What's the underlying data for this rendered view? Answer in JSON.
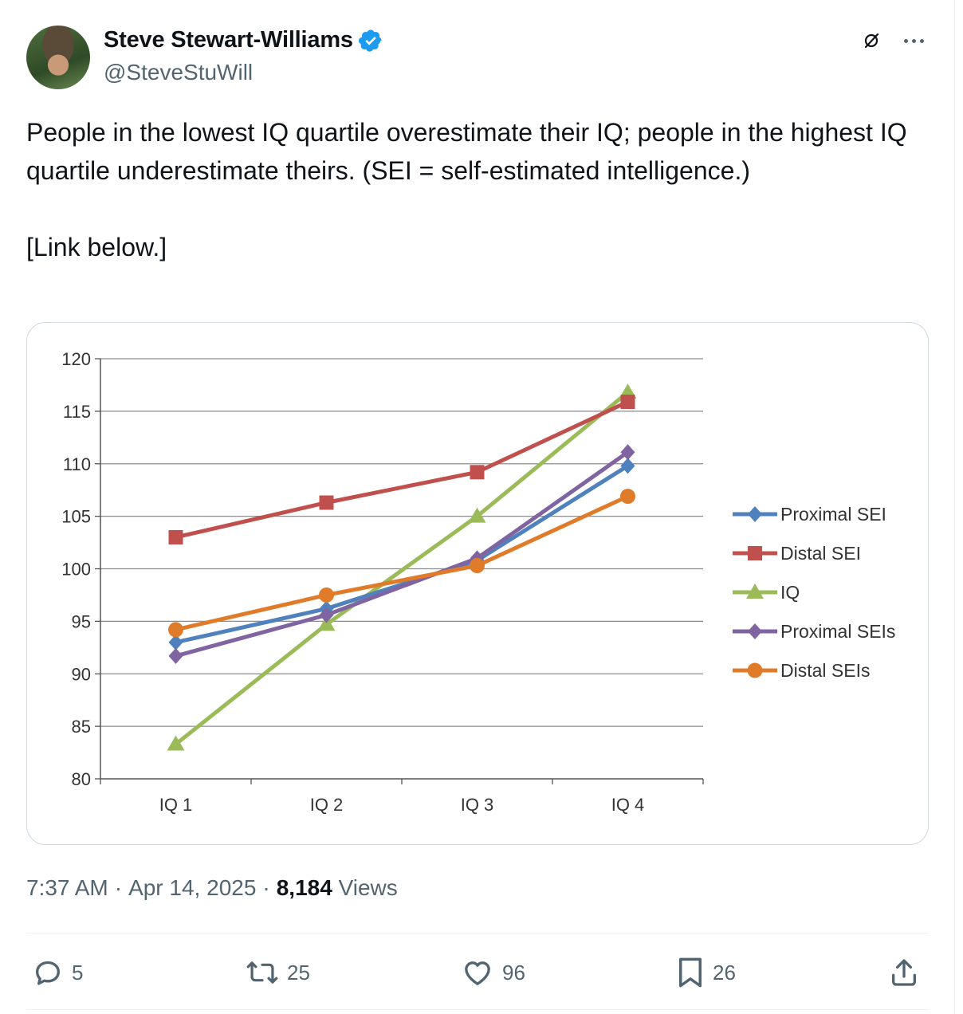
{
  "author": {
    "display_name": "Steve Stewart-Williams",
    "handle": "@SteveStuWill",
    "verified_icon": "verified-badge-icon"
  },
  "tweet": {
    "text_lines": [
      "People in the lowest IQ quartile overestimate their IQ; people in the highest IQ quartile underestimate theirs. (SEI = self-estimated intelligence.)",
      "[Link below.]"
    ]
  },
  "meta": {
    "time": "7:37 AM",
    "separator": "·",
    "date": "Apr 14, 2025",
    "views_count": "8,184",
    "views_label": "Views"
  },
  "actions": {
    "replies": "5",
    "reposts": "25",
    "likes": "96",
    "bookmarks": "26"
  },
  "colors": {
    "proximal_sei": "#4f81bd",
    "distal_sei": "#c0504d",
    "iq": "#9bbb59",
    "proximal_seis": "#8064a2",
    "distal_seis": "#e07b2a"
  },
  "chart_data": {
    "type": "line",
    "categories": [
      "IQ 1",
      "IQ 2",
      "IQ 3",
      "IQ 4"
    ],
    "ylim": [
      80,
      120
    ],
    "yticks": [
      80,
      85,
      90,
      95,
      100,
      105,
      110,
      115,
      120
    ],
    "grid": true,
    "legend_position": "right",
    "series": [
      {
        "name": "Proximal SEI",
        "marker": "diamond",
        "color": "#4f81bd",
        "values": [
          93.0,
          96.2,
          100.8,
          109.8
        ]
      },
      {
        "name": "Distal SEI",
        "marker": "square",
        "color": "#c0504d",
        "values": [
          103.0,
          106.3,
          109.2,
          115.9
        ]
      },
      {
        "name": "IQ",
        "marker": "triangle",
        "color": "#9bbb59",
        "values": [
          83.3,
          94.7,
          105.0,
          116.8
        ]
      },
      {
        "name": "Proximal SEIs",
        "marker": "diamond",
        "color": "#8064a2",
        "values": [
          91.7,
          95.6,
          101.0,
          111.1
        ]
      },
      {
        "name": "Distal SEIs",
        "marker": "circle",
        "color": "#e07b2a",
        "values": [
          94.2,
          97.5,
          100.3,
          106.9
        ]
      }
    ]
  }
}
